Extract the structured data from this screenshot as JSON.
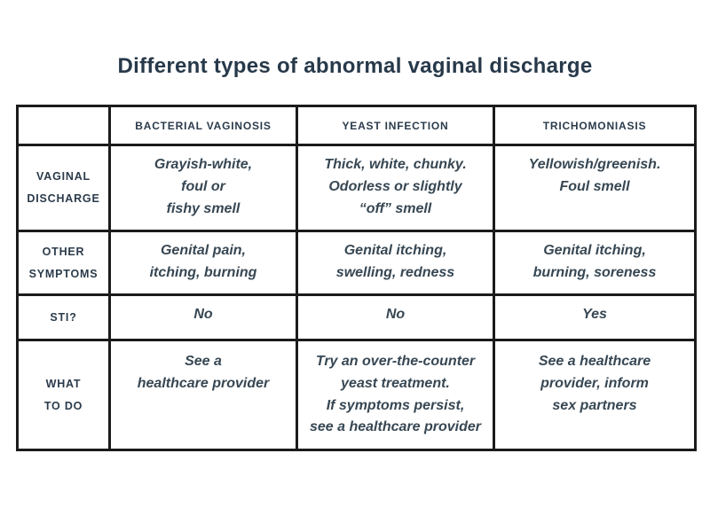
{
  "page": {
    "title": "Different types of abnormal vaginal discharge"
  },
  "colors": {
    "text_navy": "#2b3b4b",
    "cell_text": "#374753",
    "border": "#1b1b1b",
    "background": "#ffffff"
  },
  "table": {
    "column_headers": [
      "BACTERIAL VAGINOSIS",
      "YEAST INFECTION",
      "TRICHOMONIASIS"
    ],
    "rows": [
      {
        "label": "VAGINAL\nDISCHARGE",
        "cells": [
          "Grayish-white,\nfoul or\nfishy smell",
          "Thick, white, chunky.\nOdorless or slightly\n“off” smell",
          "Yellowish/greenish.\nFoul smell"
        ]
      },
      {
        "label": "OTHER\nSYMPTOMS",
        "cells": [
          "Genital pain,\nitching, burning",
          "Genital itching,\nswelling, redness",
          "Genital itching,\nburning, soreness"
        ]
      },
      {
        "label": "STI?",
        "cells": [
          "No",
          "No",
          "Yes"
        ]
      },
      {
        "label": "WHAT\nTO DO",
        "cells": [
          "See a\nhealthcare provider",
          "Try an over-the-counter\nyeast treatment.\nIf symptoms persist,\nsee a healthcare provider",
          "See a healthcare\nprovider, inform\nsex partners"
        ]
      }
    ]
  }
}
